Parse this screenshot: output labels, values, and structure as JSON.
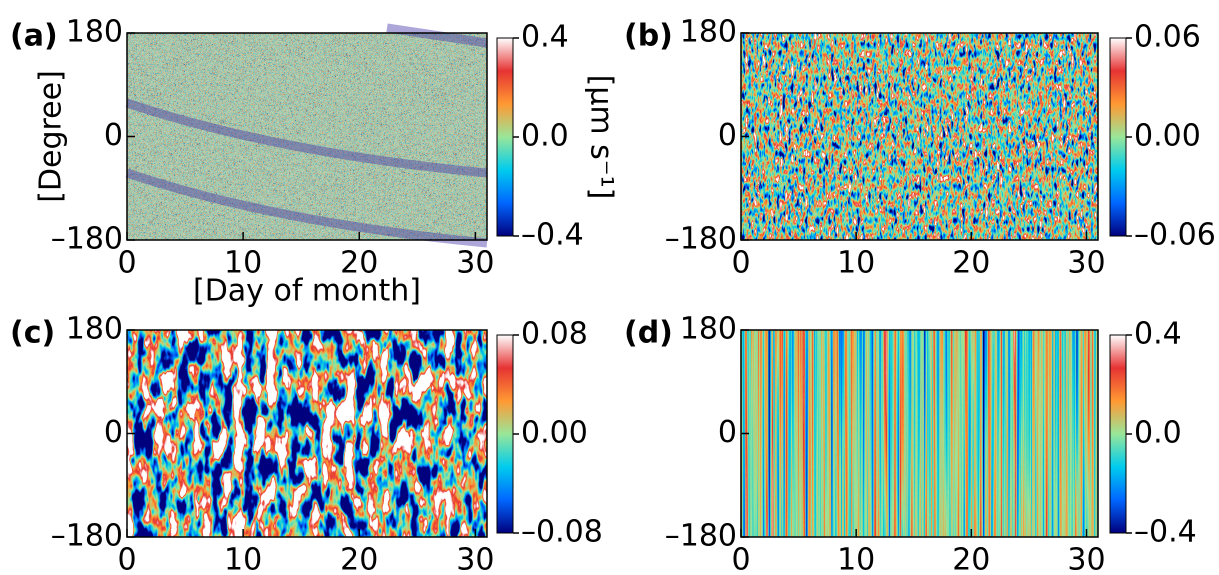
{
  "chart_data": [
    {
      "type": "heatmap",
      "panel_label": "(a)",
      "ylabel": "[Degree]",
      "xlabel": "[Day of month]",
      "colorbar_label": "[µm s⁻¹]",
      "xlim": [
        0,
        31
      ],
      "xticks": [
        0,
        10,
        20,
        30
      ],
      "ylim": [
        -180,
        180
      ],
      "yticks": [
        {
          "value": -180,
          "label": "–180"
        },
        0,
        180
      ],
      "clim": [
        -0.4,
        0.4
      ],
      "cticks": [
        {
          "value": -0.4,
          "label": "–0.4"
        },
        {
          "value": 0,
          "label": "0.0"
        },
        0.4
      ],
      "colormap": [
        "#00007f",
        "#0066ff",
        "#00ccee",
        "#99e699",
        "#ff9933",
        "#e63333",
        "#ffffff"
      ]
    },
    {
      "type": "heatmap",
      "panel_label": "(b)",
      "xlim": [
        0,
        31
      ],
      "xticks": [
        0,
        10,
        20,
        30
      ],
      "ylim": [
        -180,
        180
      ],
      "yticks": [
        {
          "value": -180,
          "label": "–180"
        },
        0,
        180
      ],
      "clim": [
        -0.06,
        0.06
      ],
      "cticks": [
        {
          "value": -0.06,
          "label": "–0.06"
        },
        {
          "value": 0,
          "label": "0.00"
        },
        0.06
      ],
      "colormap": [
        "#00007f",
        "#0066ff",
        "#00ccee",
        "#99e699",
        "#ff9933",
        "#e63333",
        "#ffffff"
      ]
    },
    {
      "type": "heatmap",
      "panel_label": "(c)",
      "xlim": [
        0,
        31
      ],
      "xticks": [
        0,
        10,
        20,
        30
      ],
      "ylim": [
        -180,
        180
      ],
      "yticks": [
        {
          "value": -180,
          "label": "–180"
        },
        0,
        180
      ],
      "clim": [
        -0.08,
        0.08
      ],
      "cticks": [
        {
          "value": -0.08,
          "label": "–0.08"
        },
        {
          "value": 0,
          "label": "0.00"
        },
        0.08
      ],
      "colormap": [
        "#00007f",
        "#0066ff",
        "#00ccee",
        "#99e699",
        "#ff9933",
        "#e63333",
        "#ffffff"
      ]
    },
    {
      "type": "heatmap",
      "panel_label": "(d)",
      "xlim": [
        0,
        31
      ],
      "xticks": [
        0,
        10,
        20,
        30
      ],
      "ylim": [
        -180,
        180
      ],
      "yticks": [
        {
          "value": -180,
          "label": "–180"
        },
        0,
        180
      ],
      "clim": [
        -0.4,
        0.4
      ],
      "cticks": [
        {
          "value": -0.4,
          "label": "–0.4"
        },
        {
          "value": 0,
          "label": "0.0"
        },
        0.4
      ],
      "colormap": [
        "#00007f",
        "#0066ff",
        "#00ccee",
        "#99e699",
        "#ff9933",
        "#e63333",
        "#ffffff"
      ]
    }
  ]
}
